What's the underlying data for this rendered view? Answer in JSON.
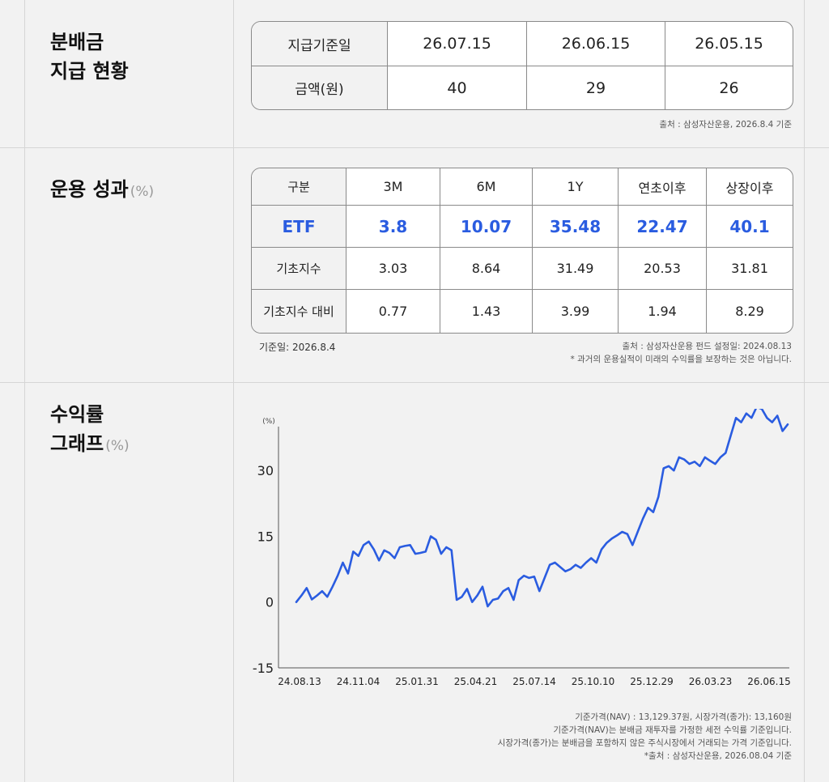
{
  "distribution": {
    "title_line1": "분배금",
    "title_line2": "지급 현황",
    "row_headers": [
      "지급기준일",
      "금액(원)"
    ],
    "dates": [
      "26.07.15",
      "26.06.15",
      "26.05.15"
    ],
    "amounts": [
      "40",
      "29",
      "26"
    ],
    "source": "출처 : 삼성자산운용, 2026.8.4 기준"
  },
  "performance": {
    "title": "운용 성과",
    "unit": "(%)",
    "columns": [
      "구분",
      "3M",
      "6M",
      "1Y",
      "연초이후",
      "상장이후"
    ],
    "rows": [
      {
        "label": "ETF",
        "values": [
          "3.8",
          "10.07",
          "35.48",
          "22.47",
          "40.1"
        ]
      },
      {
        "label": "기초지수",
        "values": [
          "3.03",
          "8.64",
          "31.49",
          "20.53",
          "31.81"
        ]
      },
      {
        "label": "기초지수 대비",
        "values": [
          "0.77",
          "1.43",
          "3.99",
          "1.94",
          "8.29"
        ]
      }
    ],
    "base_date": "기준일: 2026.8.4",
    "source": "출처 : 삼성자산운용  펀드 설정일: 2024.08.13",
    "disclaimer": "* 과거의 운용실적이 미래의 수익률을 보장하는 것은 아닙니다."
  },
  "returns_graph": {
    "title_line1": "수익률",
    "title_line2": "그래프",
    "unit": "(%)",
    "notes": [
      "기준가격(NAV) : 13,129.37원, 시장가격(종가): 13,160원",
      "기준가격(NAV)는 분배금 재투자를 가정한 세전 수익률 기준입니다.",
      "시장가격(종가)는 분배금을 포함하지 않은 주식시장에서 거래되는 가격 기준입니다.",
      "*출처 : 삼성자산운용, 2026.08.04 기준"
    ]
  },
  "chart_data": {
    "type": "line",
    "title": "",
    "ylabel": "(%)",
    "xlabel": "",
    "ylim": [
      -15,
      40
    ],
    "yticks": [
      30,
      15,
      0,
      -15
    ],
    "xtick_labels": [
      "24.08.13",
      "24.11.04",
      "25.01.31",
      "25.04.21",
      "25.07.14",
      "25.10.10",
      "25.12.29",
      "26.03.23",
      "26.06.15"
    ],
    "grid": false,
    "color": "#2a5ce0",
    "series": [
      {
        "values": [
          0,
          1.5,
          3.2,
          0.6,
          1.5,
          2.5,
          1.2,
          3.5,
          6,
          9,
          6.5,
          11.5,
          10.5,
          13,
          13.8,
          12,
          9.5,
          11.8,
          11.2,
          10,
          12.5,
          12.8,
          13,
          11,
          11.2,
          11.5,
          15,
          14.2,
          11,
          12.5,
          11.8,
          0.5,
          1.2,
          3,
          0,
          1.5,
          3.5,
          -1,
          0.5,
          0.8,
          2.5,
          3.2,
          0.5,
          5,
          6,
          5.5,
          5.8,
          2.5,
          5.5,
          8.5,
          9,
          8,
          7,
          7.5,
          8.5,
          7.8,
          9,
          10,
          9,
          12,
          13.5,
          14.5,
          15.2,
          16,
          15.5,
          13,
          16,
          19,
          21.5,
          20.5,
          24,
          30.5,
          31,
          30,
          33,
          32.5,
          31.5,
          32,
          31,
          33,
          32.2,
          31.5,
          33,
          34,
          38,
          42,
          41,
          43,
          42,
          44.5,
          44,
          42,
          41,
          42.5,
          39,
          40.5
        ]
      }
    ]
  }
}
